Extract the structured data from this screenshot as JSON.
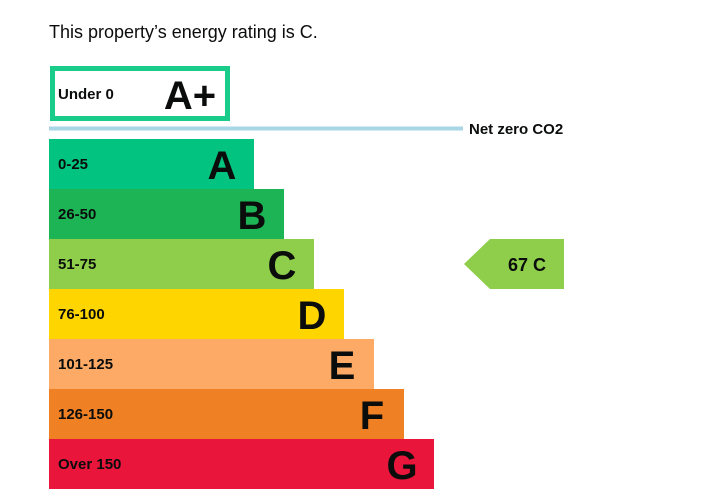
{
  "intro": {
    "text": "This property’s energy rating is C."
  },
  "chart_data": {
    "type": "bar",
    "title": "",
    "top_band": {
      "range": "Under 0",
      "letter": "A+",
      "border_color": "#19cc8a"
    },
    "net_zero": {
      "label": "Net zero CO2",
      "color": "#a9d6e5"
    },
    "bands": [
      {
        "range": "0-25",
        "letter": "A",
        "color": "#02c480"
      },
      {
        "range": "26-50",
        "letter": "B",
        "color": "#1cb454"
      },
      {
        "range": "51-75",
        "letter": "C",
        "color": "#8ece4a"
      },
      {
        "range": "76-100",
        "letter": "D",
        "color": "#ffd500"
      },
      {
        "range": "101-125",
        "letter": "E",
        "color": "#fcaa65"
      },
      {
        "range": "126-150",
        "letter": "F",
        "color": "#ef8023"
      },
      {
        "range": "Over 150",
        "letter": "G",
        "color": "#e9153b"
      }
    ],
    "current": {
      "value": 67,
      "letter": "C",
      "label": "67 C",
      "color": "#8ece4a"
    }
  }
}
